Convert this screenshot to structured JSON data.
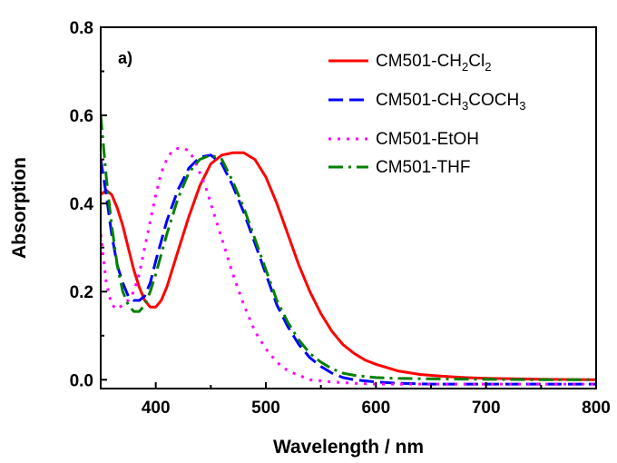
{
  "chart_data": {
    "type": "line",
    "panel_label": "a)",
    "xlabel": "Wavelength / nm",
    "ylabel": "Absorption",
    "xlim": [
      350,
      800
    ],
    "ylim": [
      -0.02,
      0.8
    ],
    "xticks": [
      400,
      500,
      600,
      700,
      800
    ],
    "xtick_labels": [
      "400",
      "500",
      "600",
      "700",
      "800"
    ],
    "yticks": [
      0.0,
      0.2,
      0.4,
      0.6,
      0.8
    ],
    "ytick_labels": [
      "0.0",
      "0.2",
      "0.4",
      "0.6",
      "0.8"
    ],
    "grid": false,
    "legend_position": "top-right",
    "series": [
      {
        "name": "CM501-CH2Cl2",
        "legend_parts": [
          [
            "CM501-CH",
            ""
          ],
          [
            "2",
            "sub"
          ],
          [
            "Cl",
            ""
          ],
          [
            "2",
            "sub"
          ]
        ],
        "color": "#ff0000",
        "style": "solid",
        "x": [
          350,
          355,
          360,
          365,
          370,
          375,
          380,
          385,
          390,
          395,
          400,
          405,
          410,
          420,
          430,
          440,
          450,
          460,
          470,
          480,
          490,
          500,
          510,
          520,
          530,
          540,
          550,
          560,
          570,
          580,
          590,
          600,
          620,
          640,
          660,
          680,
          700,
          750,
          800
        ],
        "y": [
          0.42,
          0.43,
          0.42,
          0.39,
          0.35,
          0.3,
          0.25,
          0.21,
          0.18,
          0.165,
          0.165,
          0.18,
          0.21,
          0.29,
          0.37,
          0.44,
          0.49,
          0.51,
          0.515,
          0.515,
          0.5,
          0.46,
          0.4,
          0.33,
          0.26,
          0.2,
          0.15,
          0.11,
          0.08,
          0.06,
          0.045,
          0.035,
          0.02,
          0.012,
          0.008,
          0.005,
          0.003,
          0.001,
          0.0
        ]
      },
      {
        "name": "CM501-CH3COCH3",
        "legend_parts": [
          [
            "CM501-CH",
            ""
          ],
          [
            "3",
            "sub"
          ],
          [
            "COCH",
            ""
          ],
          [
            "3",
            "sub"
          ]
        ],
        "color": "#0000ff",
        "style": "dash",
        "x": [
          350,
          355,
          360,
          365,
          370,
          375,
          380,
          385,
          390,
          395,
          400,
          410,
          420,
          430,
          440,
          450,
          460,
          470,
          480,
          490,
          500,
          510,
          520,
          530,
          540,
          550,
          560,
          570,
          580,
          600,
          620,
          650,
          700,
          750,
          800
        ],
        "y": [
          0.5,
          0.42,
          0.33,
          0.26,
          0.22,
          0.19,
          0.18,
          0.18,
          0.19,
          0.22,
          0.27,
          0.36,
          0.43,
          0.48,
          0.505,
          0.51,
          0.49,
          0.44,
          0.38,
          0.31,
          0.24,
          0.17,
          0.12,
          0.08,
          0.05,
          0.03,
          0.015,
          0.005,
          0.0,
          -0.005,
          -0.008,
          -0.01,
          -0.01,
          -0.01,
          -0.01
        ]
      },
      {
        "name": "CM501-EtOH",
        "legend_parts": [
          [
            "CM501-EtOH",
            ""
          ]
        ],
        "color": "#ff00ff",
        "style": "dot",
        "x": [
          350,
          355,
          360,
          365,
          370,
          375,
          380,
          385,
          390,
          395,
          400,
          405,
          410,
          415,
          420,
          425,
          430,
          435,
          440,
          445,
          450,
          455,
          460,
          470,
          480,
          490,
          500,
          510,
          520,
          530,
          540,
          560,
          580,
          600,
          650,
          700,
          750,
          800
        ],
        "y": [
          0.33,
          0.22,
          0.17,
          0.16,
          0.17,
          0.18,
          0.2,
          0.24,
          0.3,
          0.36,
          0.42,
          0.47,
          0.5,
          0.52,
          0.525,
          0.525,
          0.52,
          0.5,
          0.47,
          0.44,
          0.4,
          0.36,
          0.32,
          0.24,
          0.17,
          0.11,
          0.07,
          0.04,
          0.02,
          0.01,
          0.0,
          -0.005,
          -0.008,
          -0.01,
          -0.01,
          -0.01,
          -0.01,
          -0.01
        ]
      },
      {
        "name": "CM501-THF",
        "legend_parts": [
          [
            "CM501-THF",
            ""
          ]
        ],
        "color": "#008000",
        "style": "dashdot",
        "x": [
          350,
          355,
          360,
          365,
          370,
          375,
          380,
          385,
          390,
          395,
          400,
          410,
          420,
          430,
          440,
          450,
          460,
          470,
          480,
          490,
          500,
          510,
          520,
          530,
          540,
          550,
          560,
          570,
          580,
          600,
          620,
          650,
          700,
          750,
          800
        ],
        "y": [
          0.6,
          0.46,
          0.35,
          0.26,
          0.2,
          0.17,
          0.155,
          0.155,
          0.17,
          0.2,
          0.24,
          0.33,
          0.41,
          0.47,
          0.5,
          0.51,
          0.5,
          0.45,
          0.39,
          0.32,
          0.25,
          0.18,
          0.13,
          0.09,
          0.06,
          0.04,
          0.025,
          0.015,
          0.01,
          0.005,
          0.003,
          0.002,
          0.001,
          0.0,
          0.0
        ]
      }
    ]
  }
}
